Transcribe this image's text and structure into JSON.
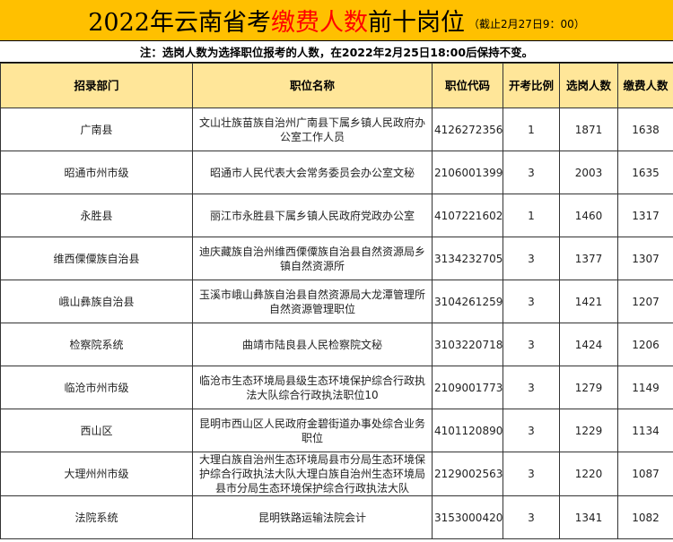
{
  "title": {
    "part1": "2022年云南省考",
    "highlight": "缴费人数",
    "part2": "前十岗位",
    "sub": "（截止2月27日9：00）"
  },
  "note": "注：选岗人数为选择职位报考的人数，在2022年2月25日18:00后保持不变。",
  "colors": {
    "title_bg": "#FFC000",
    "header_bg": "#FFE699",
    "highlight": "#FF0000"
  },
  "headers": [
    "招录部门",
    "职位名称",
    "职位代码",
    "开考比例",
    "选岗人数",
    "缴费人数"
  ],
  "rows": [
    [
      "广南县",
      "文山壮族苗族自治州广南县下属乡镇人民政府办公室工作人员",
      "4126272356",
      "1",
      "1871",
      "1638"
    ],
    [
      "昭通市州市级",
      "昭通市人民代表大会常务委员会办公室文秘",
      "2106001399",
      "3",
      "2003",
      "1635"
    ],
    [
      "永胜县",
      "丽江市永胜县下属乡镇人民政府党政办公室",
      "4107221602",
      "1",
      "1460",
      "1317"
    ],
    [
      "维西傈僳族自治县",
      "迪庆藏族自治州维西傈僳族自治县自然资源局乡镇自然资源所",
      "3134232705",
      "3",
      "1377",
      "1307"
    ],
    [
      "峨山彝族自治县",
      "玉溪市峨山彝族自治县自然资源局大龙潭管理所自然资源管理职位",
      "3104261259",
      "3",
      "1421",
      "1207"
    ],
    [
      "检察院系统",
      "曲靖市陆良县人民检察院文秘",
      "3103220718",
      "3",
      "1424",
      "1206"
    ],
    [
      "临沧市州市级",
      "临沧市生态环境局县级生态环境保护综合行政执法大队综合行政执法职位10",
      "2109001773",
      "3",
      "1279",
      "1149"
    ],
    [
      "西山区",
      "昆明市西山区人民政府金碧街道办事处综合业务职位",
      "4101120890",
      "3",
      "1229",
      "1134"
    ],
    [
      "大理州州市级",
      "大理白族自治州生态环境局县市分局生态环境保护综合行政执法大队大理白族自治州生态环境局县市分局生态环境保护综合行政执法大队",
      "2129002563",
      "3",
      "1220",
      "1087"
    ],
    [
      "法院系统",
      "昆明铁路运输法院会计",
      "3153000420",
      "3",
      "1341",
      "1082"
    ]
  ]
}
